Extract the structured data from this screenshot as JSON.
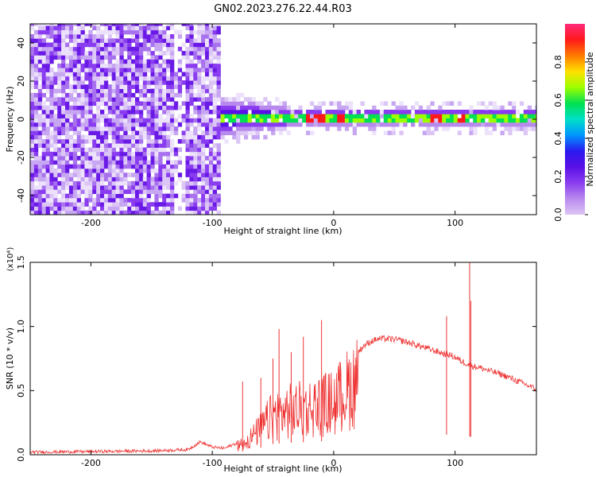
{
  "figure": {
    "title": "GN02.2023.276.22.44.R03"
  },
  "colors": {
    "snr_line": "#ee3333",
    "axis": "#000000",
    "background": "#ffffff",
    "colormap_scale": [
      "#ffffff",
      "#dcc6f5",
      "#b98aee",
      "#8a3cf0",
      "#5a10e6",
      "#2a1af0",
      "#0096ff",
      "#00e0c8",
      "#00e050",
      "#9cff00",
      "#ffe000",
      "#ff7a00",
      "#ff1a1a",
      "#ff2a7a"
    ]
  },
  "chart_data": [
    {
      "type": "heatmap",
      "xlabel": "Height of straight line (km)",
      "ylabel": "Frequency (Hz)",
      "xlim": [
        -250,
        167
      ],
      "ylim": [
        -50,
        50
      ],
      "xticks": [
        -200,
        -100,
        0,
        100
      ],
      "yticks": [
        -40,
        -20,
        0,
        20,
        40
      ],
      "colorbar": {
        "label": "Normalized spectral amplitude",
        "range": [
          0.0,
          1.0
        ],
        "ticks": [
          0.0,
          0.2,
          0.4,
          0.6,
          0.8
        ]
      },
      "signal_band": {
        "center_frequency_hz": 0,
        "noise_below_height_km": -95,
        "peak_heights_km": [
          -20,
          -12,
          4,
          83,
          103
        ]
      }
    },
    {
      "type": "line",
      "xlabel": "Height of straight line (km)",
      "ylabel": "SNR (10 * v/v)",
      "y_multiplier": "(x10⁴)",
      "xlim": [
        -250,
        167
      ],
      "ylim": [
        0.0,
        1.5
      ],
      "xticks": [
        -200,
        -100,
        0,
        100
      ],
      "yticks": [
        0.0,
        0.5,
        1.0,
        1.5
      ],
      "series": [
        {
          "x": [
            -250,
            -200,
            -150,
            -120,
            -110,
            -100,
            -90,
            -80,
            -70,
            -60,
            -50,
            -40,
            -30,
            -20,
            -10,
            -5,
            0,
            5,
            10,
            15,
            20,
            25,
            30,
            35,
            40,
            50,
            60,
            70,
            80,
            90,
            95,
            100,
            105,
            110,
            113,
            115,
            120,
            130,
            140,
            150,
            160,
            167
          ],
          "y": [
            0.02,
            0.025,
            0.03,
            0.04,
            0.1,
            0.06,
            0.05,
            0.09,
            0.16,
            0.28,
            0.42,
            0.46,
            0.48,
            0.5,
            0.53,
            0.55,
            0.56,
            0.62,
            0.68,
            0.74,
            0.8,
            0.85,
            0.88,
            0.9,
            0.905,
            0.9,
            0.88,
            0.85,
            0.82,
            0.79,
            0.78,
            0.76,
            0.73,
            0.71,
            0.7,
            0.69,
            0.68,
            0.65,
            0.62,
            0.58,
            0.54,
            0.51
          ],
          "spikes": [
            {
              "x": -75,
              "y": 0.57
            },
            {
              "x": -60,
              "y": 0.6
            },
            {
              "x": -50,
              "y": 0.75
            },
            {
              "x": -45,
              "y": 0.98
            },
            {
              "x": -35,
              "y": 0.8
            },
            {
              "x": -25,
              "y": 0.92
            },
            {
              "x": -10,
              "y": 1.05
            },
            {
              "x": 93,
              "y": 1.08
            },
            {
              "x": 112,
              "y": 1.5
            },
            {
              "x": 113,
              "y": 1.2
            }
          ]
        }
      ]
    }
  ]
}
